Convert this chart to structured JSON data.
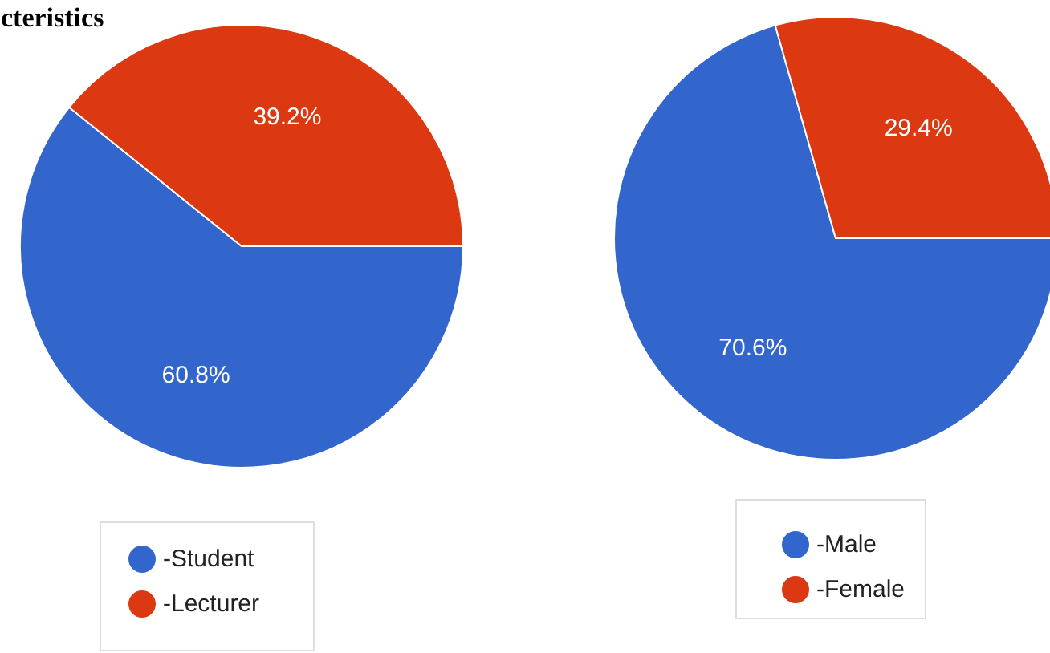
{
  "chart_data": [
    {
      "type": "pie",
      "title": "cteristics",
      "categories": [
        "-Student",
        "-Lecturer"
      ],
      "values": [
        60.8,
        39.2
      ],
      "colors": [
        "#3366cc",
        "#dc3912"
      ],
      "value_labels": [
        "60.8%",
        "39.2%"
      ],
      "legend": "bottom"
    },
    {
      "type": "pie",
      "categories": [
        "-Male",
        "-Female"
      ],
      "values": [
        70.6,
        29.4
      ],
      "colors": [
        "#3366cc",
        "#dc3912"
      ],
      "value_labels": [
        "70.6%",
        "29.4%"
      ],
      "legend": "bottom"
    }
  ]
}
